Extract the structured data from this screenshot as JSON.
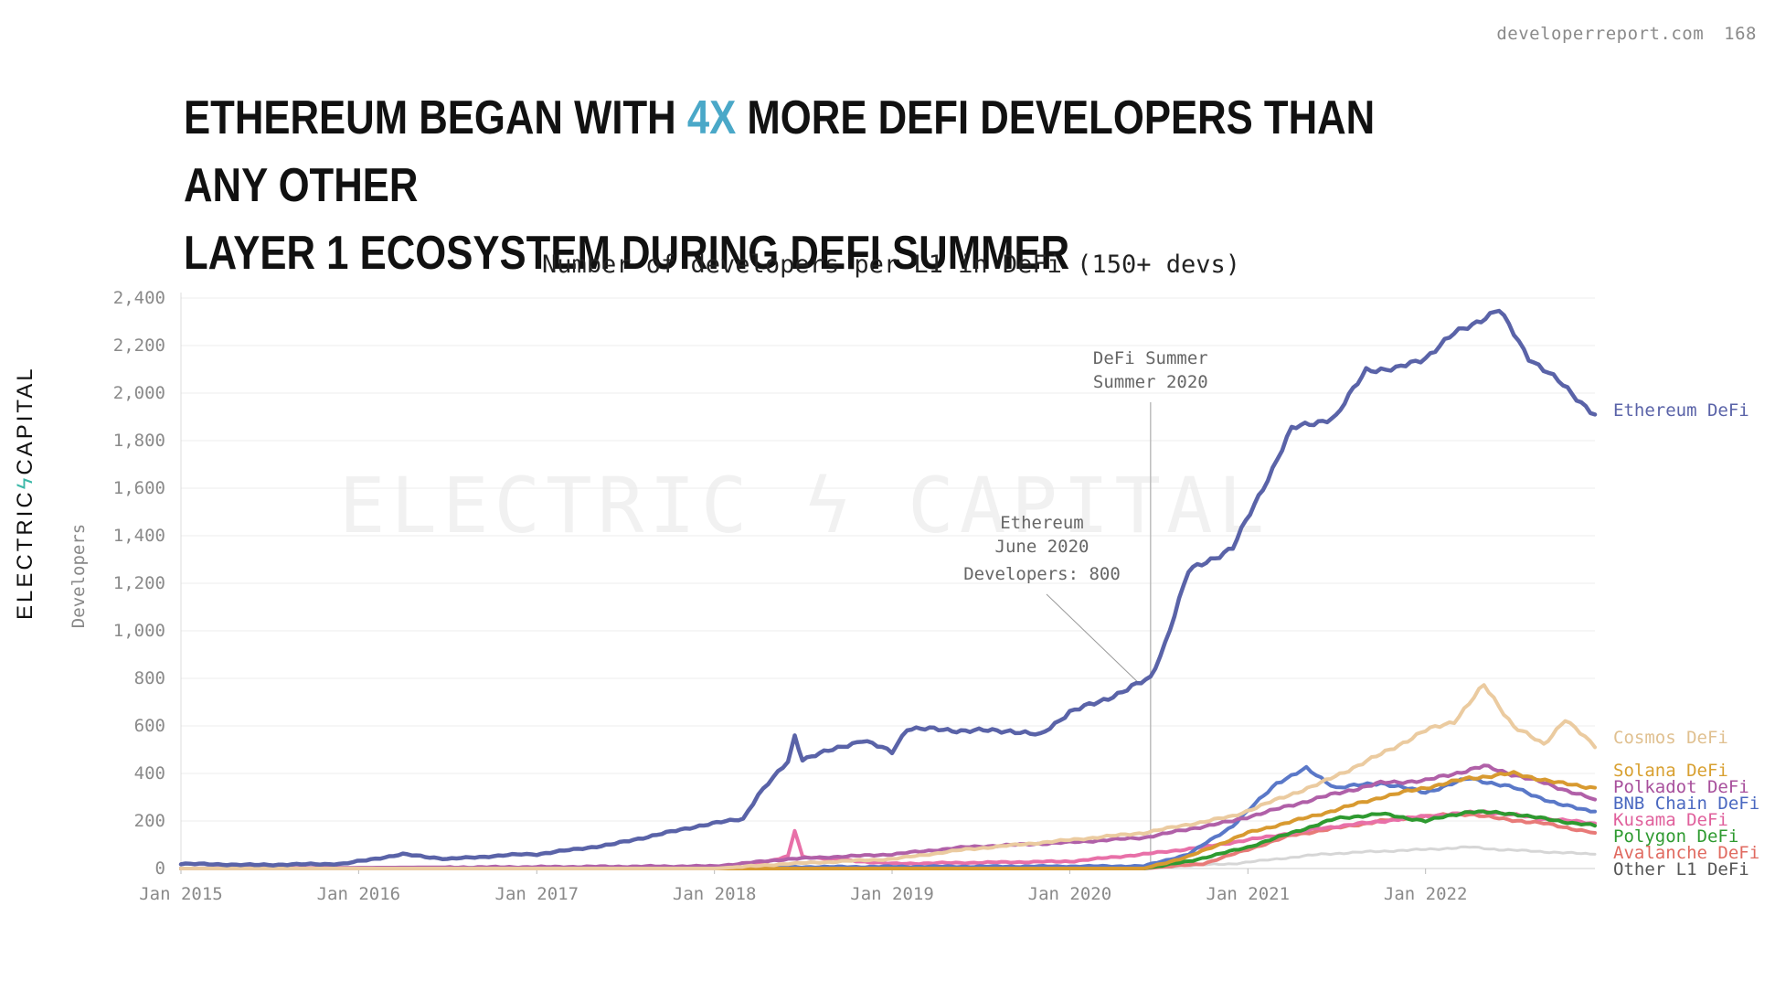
{
  "header": {
    "site": "developerreport.com",
    "page_number": "168"
  },
  "headline": {
    "part1": "ETHEREUM BEGAN WITH ",
    "highlight": "4X",
    "part2": " MORE DEFI DEVELOPERS THAN ANY OTHER",
    "line2": "LAYER 1 ECOSYSTEM DURING DEFI SUMMER",
    "highlight_color": "#4aa8c8"
  },
  "logo": {
    "left": "ELECTRIC",
    "bolt": "ϟ",
    "right": "CAPITAL"
  },
  "watermark": "ELECTRIC ϟ CAPITAL",
  "chart_data": {
    "type": "line",
    "title": "Number of developers per L1 in DeFi (150+ devs)",
    "ylabel": "Developers",
    "xlabel": "",
    "ylim": [
      0,
      2400
    ],
    "y_ticks": [
      0,
      200,
      400,
      600,
      800,
      1000,
      1200,
      1400,
      1600,
      1800,
      2000,
      2200,
      2400
    ],
    "y_tick_labels": [
      "0",
      "200",
      "400",
      "600",
      "800",
      "1,000",
      "1,200",
      "1,400",
      "1,600",
      "1,800",
      "2,000",
      "2,200",
      "2,400"
    ],
    "xlim": [
      "2015-01-01",
      "2022-12-15"
    ],
    "x_ticks": [
      "2015-01-01",
      "2016-01-01",
      "2017-01-01",
      "2018-01-01",
      "2019-01-01",
      "2020-01-01",
      "2021-01-01",
      "2022-01-01"
    ],
    "x_tick_labels": [
      "Jan 2015",
      "Jan 2016",
      "Jan 2017",
      "Jan 2018",
      "Jan 2019",
      "Jan 2020",
      "Jan 2021",
      "Jan 2022"
    ],
    "grid": true,
    "legend": "right, end of lines",
    "annotations": [
      {
        "x": "2020-06-15",
        "lines": [
          "DeFi Summer",
          "Summer 2020"
        ],
        "type": "vertical-line"
      },
      {
        "x": "2020-06-15",
        "y": 800,
        "lines": [
          "Ethereum",
          "June 2020",
          "Developers: 800"
        ],
        "type": "callout"
      }
    ],
    "series": [
      {
        "name": "Other L1 DeFi",
        "color": "#d6d6d6",
        "label_color": "#555555",
        "points": [
          [
            "2015-01-01",
            0
          ],
          [
            "2018-01-01",
            0
          ],
          [
            "2020-01-01",
            2
          ],
          [
            "2020-07-01",
            8
          ],
          [
            "2020-12-01",
            20
          ],
          [
            "2021-03-01",
            40
          ],
          [
            "2021-06-01",
            60
          ],
          [
            "2021-09-01",
            70
          ],
          [
            "2022-01-01",
            80
          ],
          [
            "2022-04-01",
            90
          ],
          [
            "2022-06-01",
            80
          ],
          [
            "2022-12-15",
            60
          ]
        ]
      },
      {
        "name": "Avalanche DeFi",
        "color": "#e87a78",
        "label_color": "#e06a60",
        "points": [
          [
            "2015-01-01",
            0
          ],
          [
            "2020-06-01",
            0
          ],
          [
            "2020-10-01",
            20
          ],
          [
            "2021-01-01",
            80
          ],
          [
            "2021-04-01",
            140
          ],
          [
            "2021-07-01",
            170
          ],
          [
            "2021-10-01",
            200
          ],
          [
            "2022-01-01",
            220
          ],
          [
            "2022-04-01",
            230
          ],
          [
            "2022-06-01",
            210
          ],
          [
            "2022-09-01",
            190
          ],
          [
            "2022-12-15",
            150
          ]
        ]
      },
      {
        "name": "Kusama DeFi",
        "color": "#e870a8",
        "label_color": "#e0609c",
        "points": [
          [
            "2015-01-01",
            0
          ],
          [
            "2017-12-01",
            0
          ],
          [
            "2018-03-01",
            5
          ],
          [
            "2018-06-01",
            50
          ],
          [
            "2018-06-15",
            160
          ],
          [
            "2018-07-01",
            50
          ],
          [
            "2019-01-01",
            20
          ],
          [
            "2020-01-01",
            30
          ],
          [
            "2020-06-01",
            60
          ],
          [
            "2020-10-01",
            90
          ],
          [
            "2021-01-01",
            120
          ],
          [
            "2021-06-01",
            170
          ],
          [
            "2022-01-01",
            220
          ],
          [
            "2022-05-01",
            240
          ],
          [
            "2022-09-01",
            210
          ],
          [
            "2022-12-15",
            190
          ]
        ]
      },
      {
        "name": "Polygon DeFi",
        "color": "#2e9a30",
        "label_color": "#2e9a30",
        "points": [
          [
            "2015-01-01",
            0
          ],
          [
            "2016-01-01",
            0
          ],
          [
            "2020-06-01",
            0
          ],
          [
            "2020-09-01",
            30
          ],
          [
            "2021-01-01",
            90
          ],
          [
            "2021-04-01",
            150
          ],
          [
            "2021-07-01",
            210
          ],
          [
            "2021-10-01",
            230
          ],
          [
            "2022-01-01",
            200
          ],
          [
            "2022-04-01",
            240
          ],
          [
            "2022-07-01",
            230
          ],
          [
            "2022-10-01",
            200
          ],
          [
            "2022-12-15",
            180
          ]
        ]
      },
      {
        "name": "BNB Chain DeFi",
        "color": "#5a78c8",
        "label_color": "#4a68c0",
        "points": [
          [
            "2015-01-01",
            0
          ],
          [
            "2020-06-01",
            10
          ],
          [
            "2020-09-01",
            60
          ],
          [
            "2020-12-01",
            180
          ],
          [
            "2021-03-01",
            360
          ],
          [
            "2021-05-01",
            420
          ],
          [
            "2021-07-01",
            340
          ],
          [
            "2021-10-01",
            360
          ],
          [
            "2022-01-01",
            320
          ],
          [
            "2022-04-01",
            380
          ],
          [
            "2022-07-01",
            340
          ],
          [
            "2022-10-01",
            270
          ],
          [
            "2022-12-15",
            240
          ]
        ]
      },
      {
        "name": "Polkadot DeFi",
        "color": "#b060a8",
        "label_color": "#a8509c",
        "points": [
          [
            "2015-01-01",
            0
          ],
          [
            "2018-01-01",
            10
          ],
          [
            "2018-06-01",
            40
          ],
          [
            "2019-01-01",
            60
          ],
          [
            "2019-06-01",
            90
          ],
          [
            "2020-01-01",
            110
          ],
          [
            "2020-06-01",
            130
          ],
          [
            "2020-12-01",
            200
          ],
          [
            "2021-06-01",
            300
          ],
          [
            "2021-10-01",
            360
          ],
          [
            "2022-01-01",
            370
          ],
          [
            "2022-05-01",
            430
          ],
          [
            "2022-09-01",
            360
          ],
          [
            "2022-12-15",
            290
          ]
        ]
      },
      {
        "name": "Solana DeFi",
        "color": "#d89a30",
        "label_color": "#d8a030",
        "points": [
          [
            "2015-01-01",
            0
          ],
          [
            "2020-06-01",
            0
          ],
          [
            "2020-09-01",
            50
          ],
          [
            "2021-01-01",
            150
          ],
          [
            "2021-06-01",
            230
          ],
          [
            "2021-10-01",
            300
          ],
          [
            "2022-01-01",
            340
          ],
          [
            "2022-04-01",
            380
          ],
          [
            "2022-07-01",
            400
          ],
          [
            "2022-10-01",
            360
          ],
          [
            "2022-12-15",
            340
          ]
        ]
      },
      {
        "name": "Cosmos DeFi",
        "color": "#ebcba0",
        "label_color": "#e0c090",
        "points": [
          [
            "2015-01-01",
            0
          ],
          [
            "2018-01-01",
            0
          ],
          [
            "2018-06-01",
            20
          ],
          [
            "2019-01-01",
            40
          ],
          [
            "2019-06-01",
            80
          ],
          [
            "2020-01-01",
            120
          ],
          [
            "2020-06-01",
            150
          ],
          [
            "2020-12-01",
            220
          ],
          [
            "2021-06-01",
            360
          ],
          [
            "2021-10-01",
            480
          ],
          [
            "2022-01-01",
            580
          ],
          [
            "2022-03-01",
            620
          ],
          [
            "2022-05-01",
            770
          ],
          [
            "2022-07-01",
            600
          ],
          [
            "2022-09-01",
            520
          ],
          [
            "2022-10-15",
            630
          ],
          [
            "2022-12-15",
            510
          ]
        ]
      },
      {
        "name": "Ethereum DeFi",
        "color": "#5a63a8",
        "label_color": "#5a63a8",
        "points": [
          [
            "2015-01-01",
            20
          ],
          [
            "2015-06-01",
            15
          ],
          [
            "2015-12-01",
            20
          ],
          [
            "2016-04-01",
            60
          ],
          [
            "2016-07-01",
            40
          ],
          [
            "2016-12-01",
            60
          ],
          [
            "2017-01-01",
            60
          ],
          [
            "2017-06-01",
            100
          ],
          [
            "2017-12-01",
            180
          ],
          [
            "2018-03-01",
            210
          ],
          [
            "2018-04-01",
            310
          ],
          [
            "2018-06-01",
            450
          ],
          [
            "2018-06-15",
            560
          ],
          [
            "2018-07-01",
            460
          ],
          [
            "2018-09-01",
            500
          ],
          [
            "2018-11-01",
            540
          ],
          [
            "2019-01-01",
            490
          ],
          [
            "2019-02-01",
            590
          ],
          [
            "2019-06-01",
            580
          ],
          [
            "2019-09-01",
            580
          ],
          [
            "2019-11-01",
            560
          ],
          [
            "2020-01-01",
            660
          ],
          [
            "2020-03-01",
            700
          ],
          [
            "2020-06-15",
            800
          ],
          [
            "2020-07-15",
            950
          ],
          [
            "2020-09-01",
            1250
          ],
          [
            "2020-12-01",
            1350
          ],
          [
            "2021-02-01",
            1600
          ],
          [
            "2021-04-01",
            1850
          ],
          [
            "2021-07-01",
            1900
          ],
          [
            "2021-09-01",
            2100
          ],
          [
            "2021-11-01",
            2100
          ],
          [
            "2022-01-01",
            2150
          ],
          [
            "2022-03-01",
            2250
          ],
          [
            "2022-06-01",
            2350
          ],
          [
            "2022-08-01",
            2150
          ],
          [
            "2022-10-01",
            2050
          ],
          [
            "2022-12-15",
            1910
          ]
        ]
      }
    ]
  }
}
